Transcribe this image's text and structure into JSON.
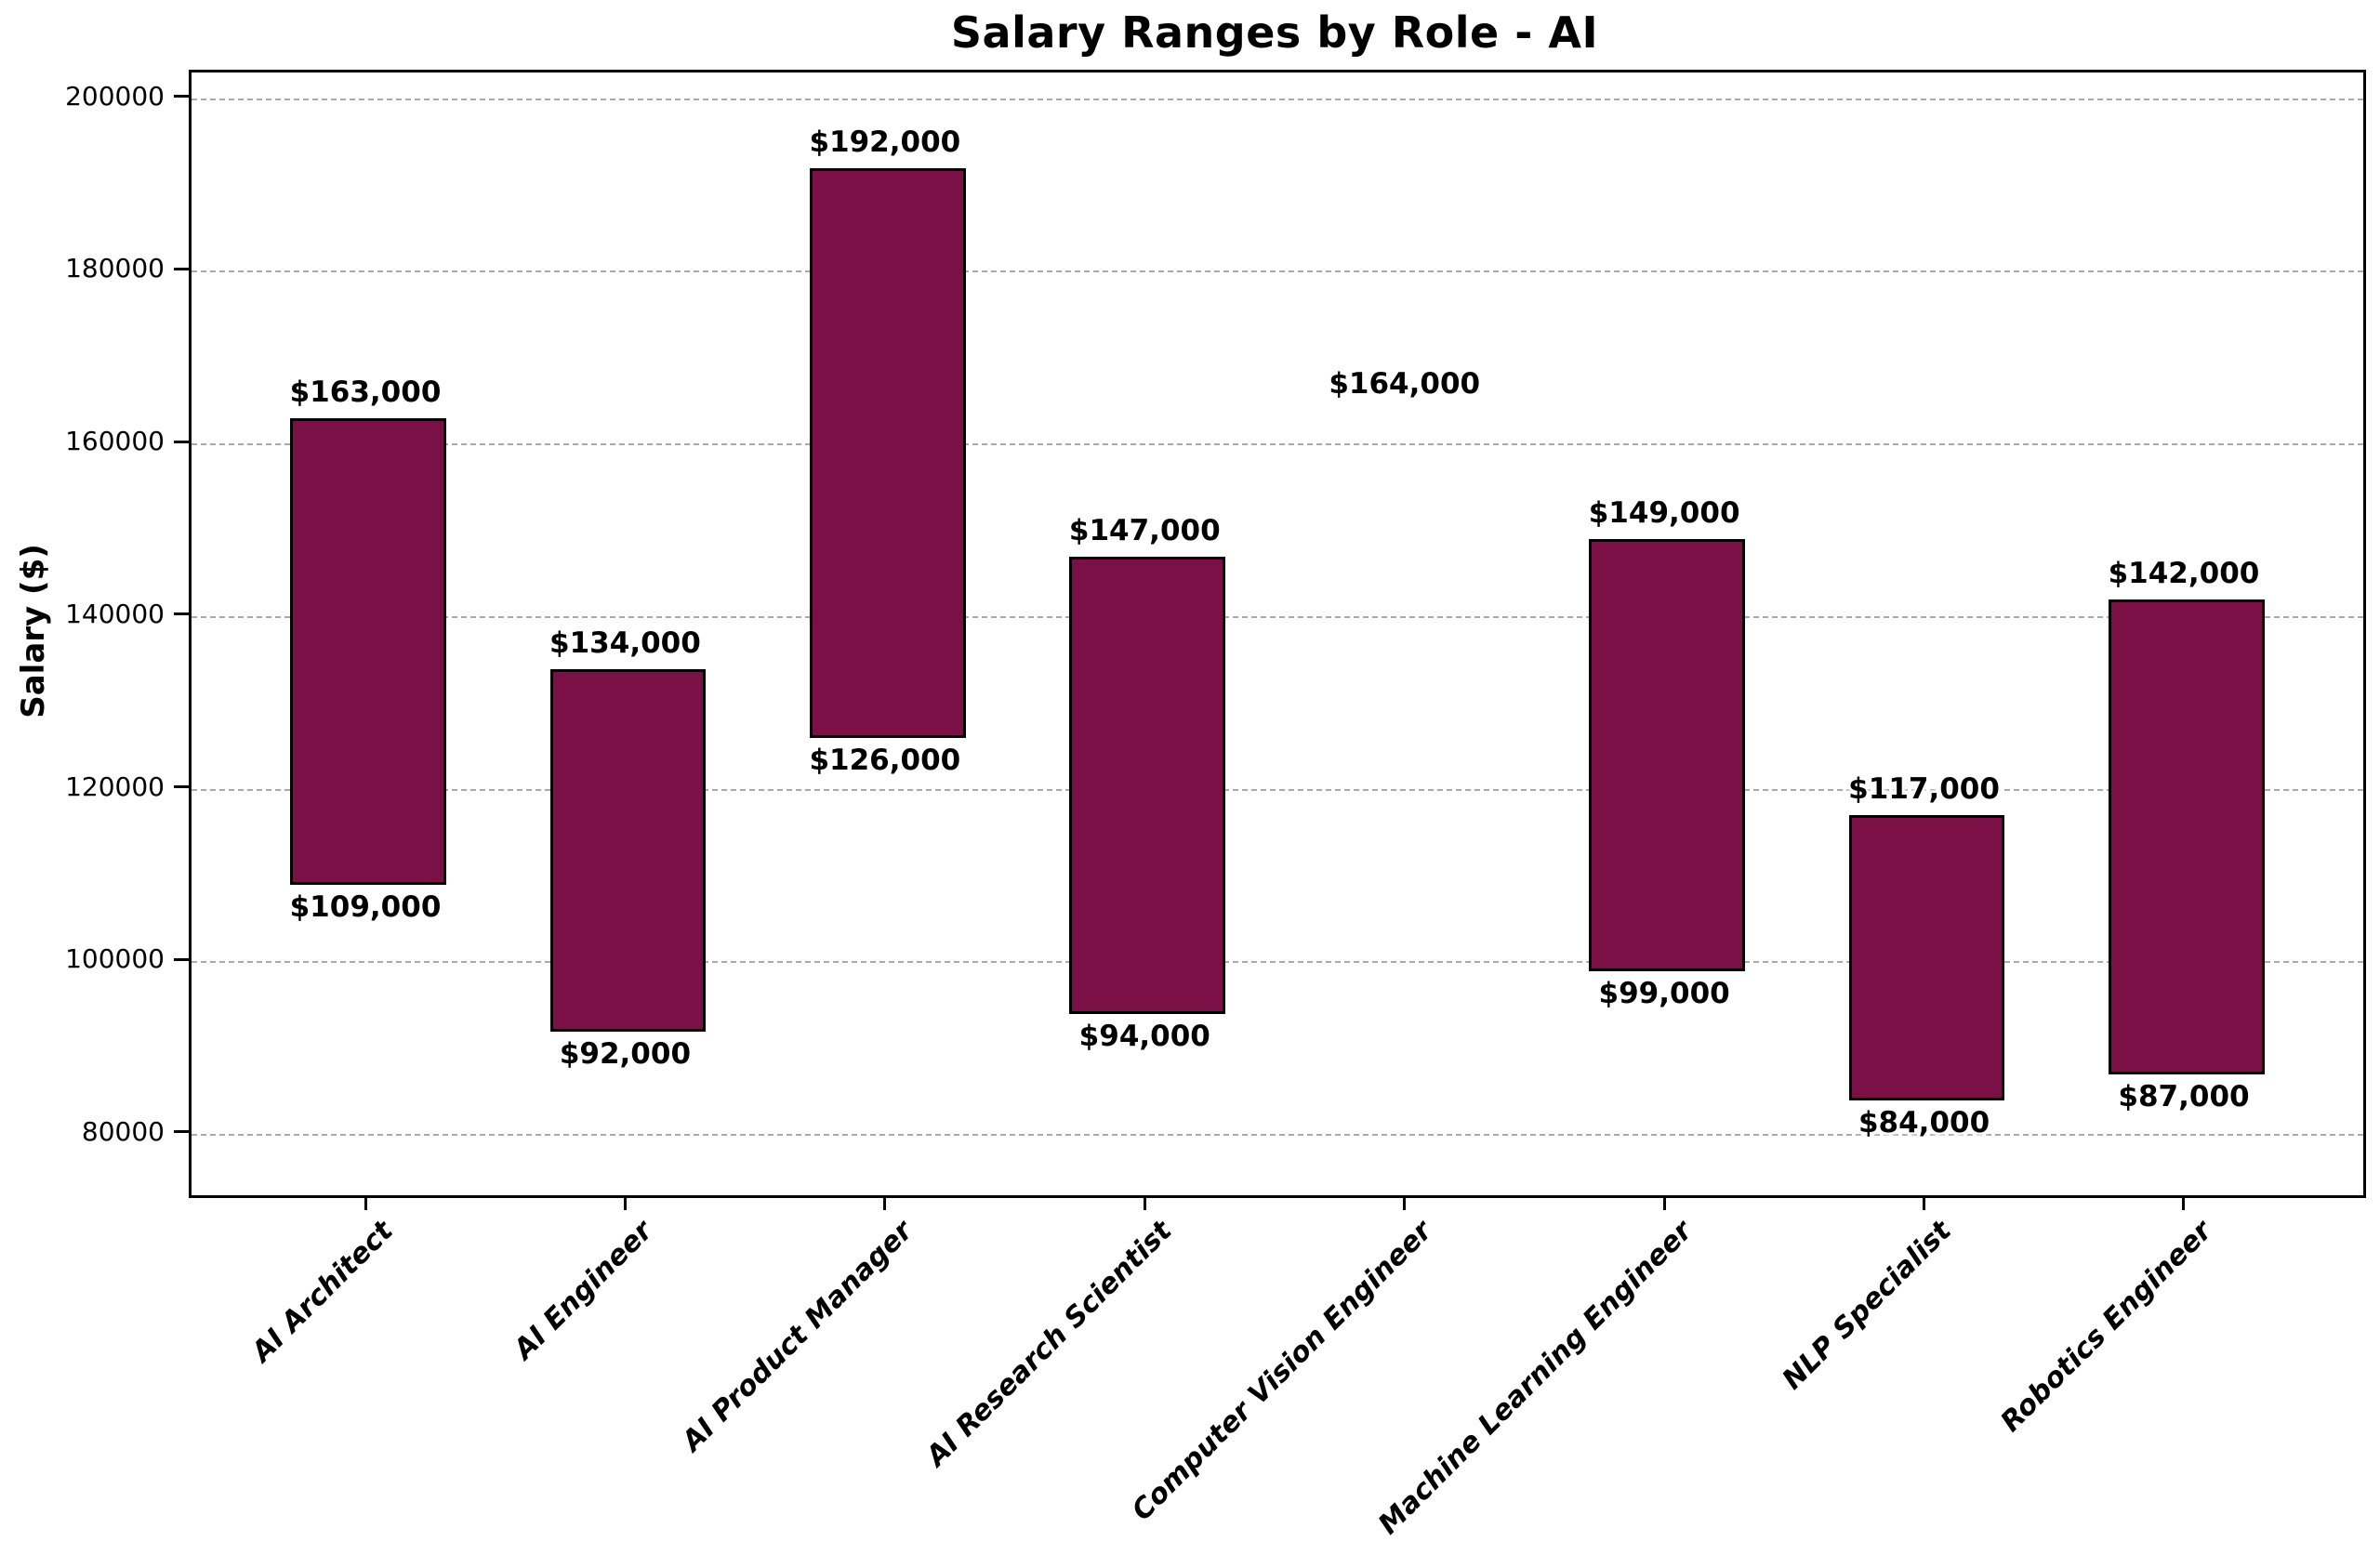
{
  "title": "Salary Ranges by Role - AI",
  "y_axis": {
    "label": "Salary ($)",
    "ticks": [
      {
        "value": 200000,
        "label": "200000"
      },
      {
        "value": 180000,
        "label": "180000"
      },
      {
        "value": 160000,
        "label": "160000"
      },
      {
        "value": 140000,
        "label": "140000"
      },
      {
        "value": 120000,
        "label": "120000"
      },
      {
        "value": 100000,
        "label": "100000"
      },
      {
        "value": 80000,
        "label": "80000"
      }
    ]
  },
  "chart_data": {
    "type": "bar",
    "subtype": "floating-range-bar",
    "title": "Salary Ranges by Role - AI",
    "xlabel": "",
    "ylabel": "Salary ($)",
    "categories": [
      "AI Architect",
      "AI Engineer",
      "AI Product Manager",
      "AI Research Scientist",
      "Computer Vision Engineer",
      "Machine Learning Engineer",
      "NLP Specialist",
      "Robotics Engineer"
    ],
    "ranges": [
      {
        "category": "AI Architect",
        "min": 109000,
        "max": 163000,
        "min_label": "$109,000",
        "max_label": "$163,000"
      },
      {
        "category": "AI Engineer",
        "min": 92000,
        "max": 134000,
        "min_label": "$92,000",
        "max_label": "$134,000"
      },
      {
        "category": "AI Product Manager",
        "min": 126000,
        "max": 192000,
        "min_label": "$126,000",
        "max_label": "$192,000"
      },
      {
        "category": "AI Research Scientist",
        "min": 94000,
        "max": 147000,
        "min_label": "$94,000",
        "max_label": "$147,000"
      },
      {
        "category": "Computer Vision Engineer",
        "min": 164000,
        "max": 164000,
        "min_label": null,
        "max_label": "$164,000"
      },
      {
        "category": "Machine Learning Engineer",
        "min": 99000,
        "max": 149000,
        "min_label": "$99,000",
        "max_label": "$149,000"
      },
      {
        "category": "NLP Specialist",
        "min": 84000,
        "max": 117000,
        "min_label": "$84,000",
        "max_label": "$117,000"
      },
      {
        "category": "Robotics Engineer",
        "min": 87000,
        "max": 142000,
        "min_label": "$87,000",
        "max_label": "$142,000"
      }
    ],
    "ylim": [
      73000,
      203077
    ],
    "yticks": [
      80000,
      100000,
      120000,
      140000,
      160000,
      180000,
      200000
    ],
    "grid": true,
    "grid_style": "dashed",
    "legend": null,
    "colors": {
      "bar_fill": "#7A1045",
      "bar_edge": "#000000",
      "grid": "#AAAAAA",
      "text": "#000000",
      "background": "#FFFFFF"
    }
  }
}
